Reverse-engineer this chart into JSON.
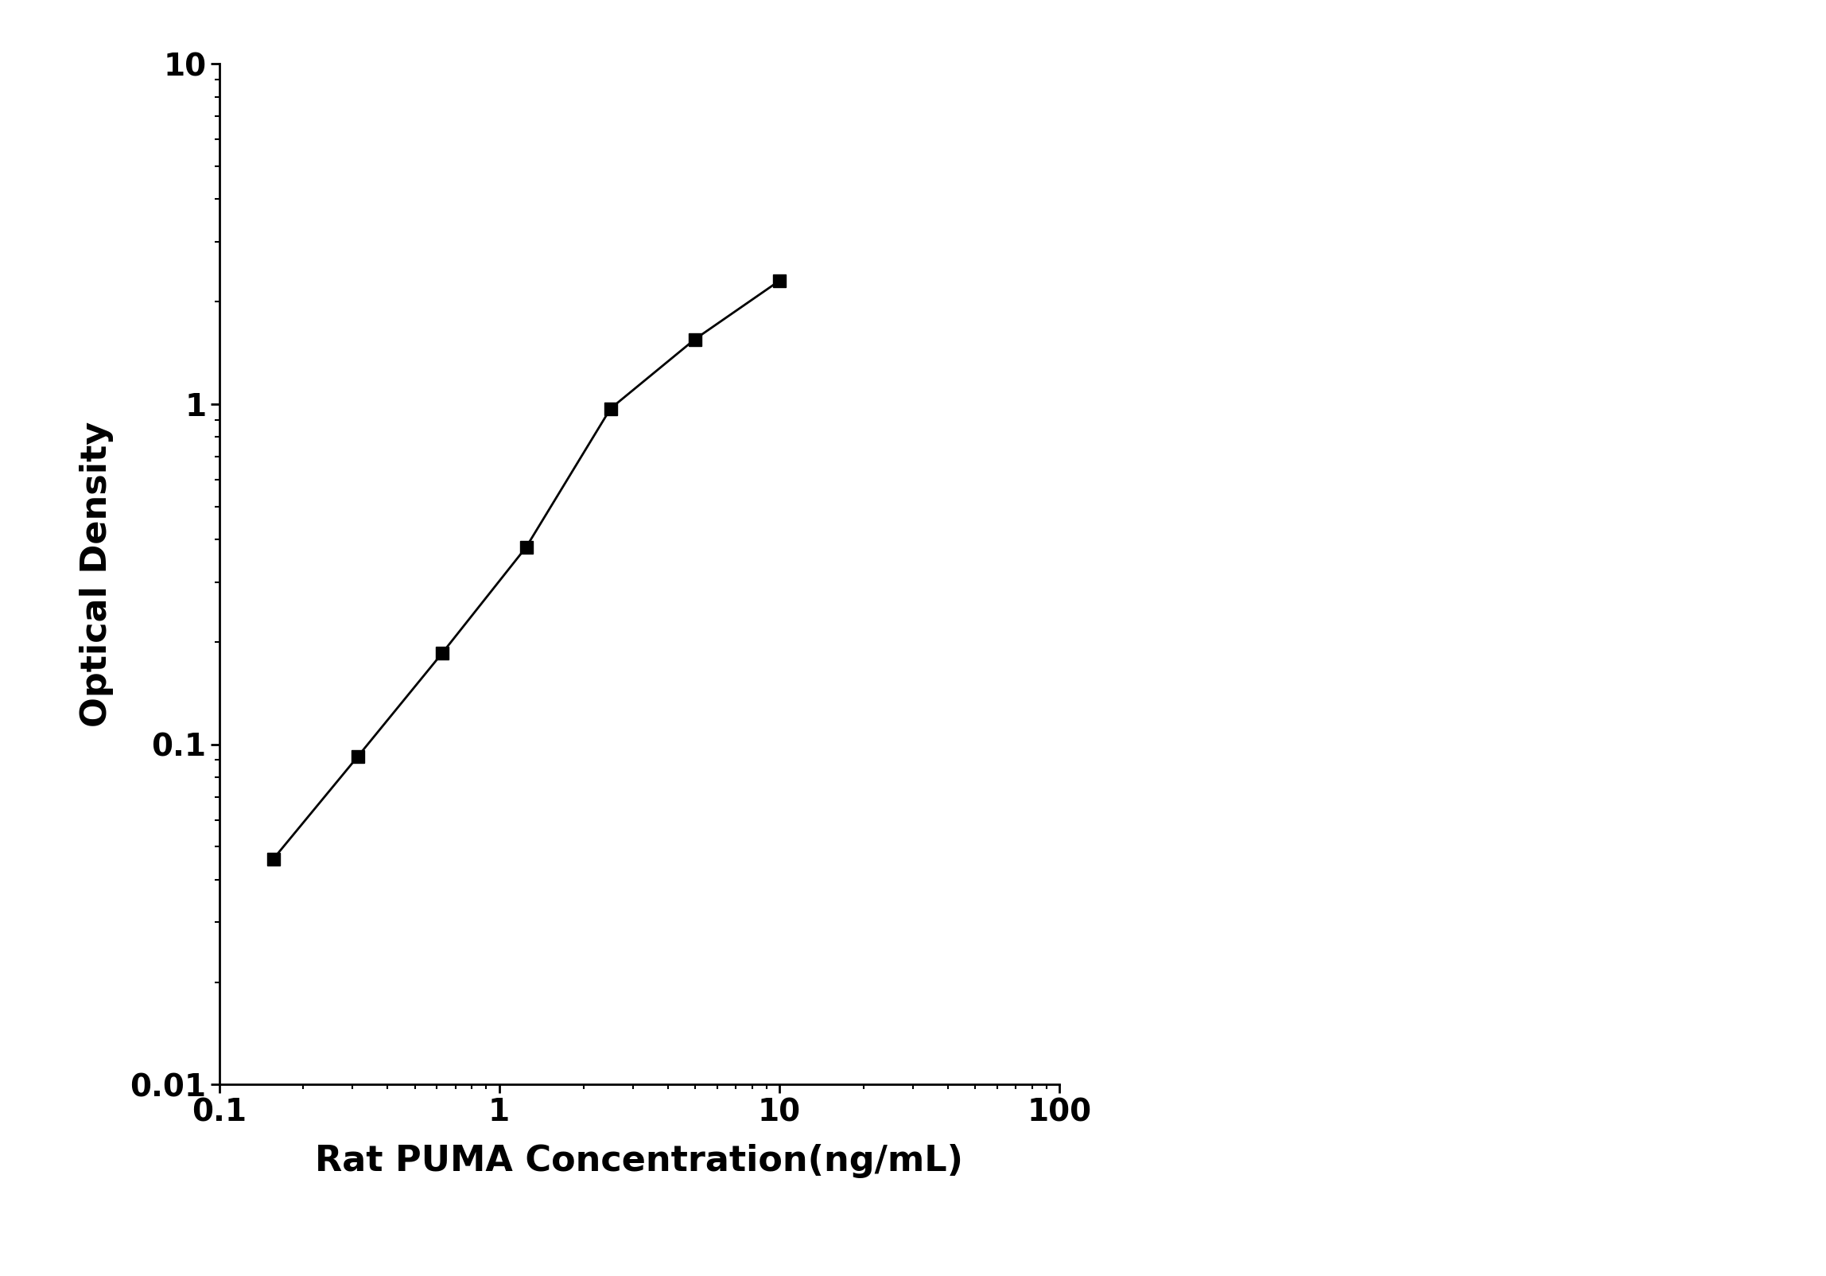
{
  "x": [
    0.156,
    0.3125,
    0.625,
    1.25,
    2.5,
    5.0,
    10.0
  ],
  "y": [
    0.046,
    0.092,
    0.185,
    0.38,
    0.97,
    1.55,
    2.3
  ],
  "xlabel": "Rat PUMA Concentration(ng/mL)",
  "ylabel": "Optical Density",
  "xlim": [
    0.1,
    100
  ],
  "ylim": [
    0.01,
    10
  ],
  "marker": "s",
  "marker_size": 12,
  "line_color": "#000000",
  "marker_color": "#000000",
  "background_color": "#ffffff",
  "spine_linewidth": 2.0,
  "xlabel_fontsize": 32,
  "ylabel_fontsize": 32,
  "tick_fontsize": 28,
  "figsize": [
    22.96,
    16.04
  ],
  "dpi": 100
}
